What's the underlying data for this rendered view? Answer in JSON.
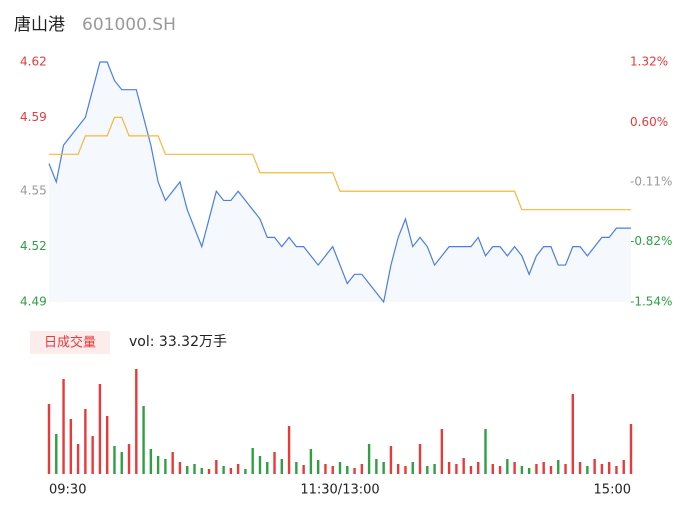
{
  "header": {
    "name": "唐山港",
    "code": "601000.SH"
  },
  "chart_data": [
    {
      "type": "line",
      "categories": [
        "09:30",
        null,
        null,
        null,
        null,
        null,
        null,
        null,
        null,
        null,
        null,
        null,
        null,
        null,
        null,
        null,
        null,
        null,
        null,
        null,
        null,
        null,
        null,
        null,
        null,
        null,
        null,
        null,
        null,
        null,
        null,
        null,
        null,
        null,
        null,
        null,
        null,
        null,
        null,
        null,
        "11:30/13:00",
        null,
        null,
        null,
        null,
        null,
        null,
        null,
        null,
        null,
        null,
        null,
        null,
        null,
        null,
        null,
        null,
        null,
        null,
        null,
        null,
        null,
        null,
        null,
        null,
        null,
        null,
        null,
        null,
        null,
        null,
        null,
        null,
        null,
        null,
        null,
        null,
        null,
        null,
        null,
        "15:00"
      ],
      "series": [
        {
          "color": "#4a7ee6",
          "values": [
            4.565,
            4.555,
            4.575,
            4.58,
            4.585,
            4.59,
            4.605,
            4.62,
            4.62,
            4.61,
            4.605,
            4.605,
            4.605,
            4.59,
            4.575,
            4.555,
            4.545,
            4.55,
            4.555,
            4.54,
            4.53,
            4.52,
            4.535,
            4.55,
            4.545,
            4.545,
            4.55,
            4.545,
            4.54,
            4.535,
            4.525,
            4.525,
            4.52,
            4.525,
            4.52,
            4.52,
            4.515,
            4.51,
            4.515,
            4.52,
            4.51,
            4.5,
            4.505,
            4.505,
            4.5,
            4.495,
            4.49,
            4.51,
            4.525,
            4.535,
            4.52,
            4.525,
            4.52,
            4.51,
            4.515,
            4.52,
            4.52,
            4.52,
            4.52,
            4.525,
            4.515,
            4.52,
            4.52,
            4.515,
            4.52,
            4.515,
            4.505,
            4.515,
            4.52,
            4.52,
            4.51,
            4.51,
            4.52,
            4.52,
            4.515,
            4.52,
            4.525,
            4.525,
            4.53,
            4.53,
            4.53
          ]
        },
        {
          "color": "#f5b93a",
          "values": [
            4.57,
            4.57,
            4.57,
            4.57,
            4.57,
            4.58,
            4.58,
            4.58,
            4.58,
            4.59,
            4.59,
            4.58,
            4.58,
            4.58,
            4.58,
            4.58,
            4.57,
            4.57,
            4.57,
            4.57,
            4.57,
            4.57,
            4.57,
            4.57,
            4.57,
            4.57,
            4.57,
            4.57,
            4.57,
            4.56,
            4.56,
            4.56,
            4.56,
            4.56,
            4.56,
            4.56,
            4.56,
            4.56,
            4.56,
            4.56,
            4.55,
            4.55,
            4.55,
            4.55,
            4.55,
            4.55,
            4.55,
            4.55,
            4.55,
            4.55,
            4.55,
            4.55,
            4.55,
            4.55,
            4.55,
            4.55,
            4.55,
            4.55,
            4.55,
            4.55,
            4.55,
            4.55,
            4.55,
            4.55,
            4.55,
            4.54,
            4.54,
            4.54,
            4.54,
            4.54,
            4.54,
            4.54,
            4.54,
            4.54,
            4.54,
            4.54,
            4.54,
            4.54,
            4.54,
            4.54,
            4.54
          ]
        }
      ],
      "fill_color": "#f5f8fd",
      "ylim": [
        4.49,
        4.62
      ],
      "yticks": [
        4.49,
        4.52,
        4.55,
        4.59,
        4.62
      ],
      "ytick_colors": [
        "#2ea043",
        "#2ea043",
        "#999999",
        "#e83a3a",
        "#e83a3a"
      ],
      "y2lim": [
        -1.54,
        1.32
      ],
      "y2ticks": [
        {
          "value": -1.54,
          "label": "-1.54%"
        },
        {
          "value": -0.82,
          "label": "-0.82%"
        },
        {
          "value": -0.11,
          "label": "-0.11%"
        },
        {
          "value": 0.6,
          "label": "0.60%"
        },
        {
          "value": 1.32,
          "label": "1.32%"
        }
      ]
    },
    {
      "type": "bar",
      "legend_label": "日成交量",
      "summary": "vol: 33.32万手",
      "values": [
        70,
        40,
        95,
        55,
        30,
        65,
        38,
        90,
        58,
        28,
        22,
        30,
        105,
        68,
        25,
        18,
        15,
        22,
        12,
        8,
        10,
        6,
        5,
        14,
        8,
        6,
        10,
        5,
        26,
        18,
        12,
        22,
        15,
        48,
        12,
        9,
        25,
        14,
        10,
        8,
        12,
        8,
        6,
        10,
        30,
        15,
        12,
        28,
        10,
        8,
        12,
        30,
        8,
        10,
        45,
        12,
        10,
        16,
        8,
        12,
        45,
        10,
        8,
        15,
        12,
        8,
        6,
        10,
        12,
        8,
        14,
        10,
        80,
        12,
        8,
        15,
        10,
        12,
        8,
        14,
        50
      ],
      "ylim": [
        0,
        110
      ],
      "up_color": "#e83a3a",
      "down_color": "#2ea043"
    }
  ]
}
